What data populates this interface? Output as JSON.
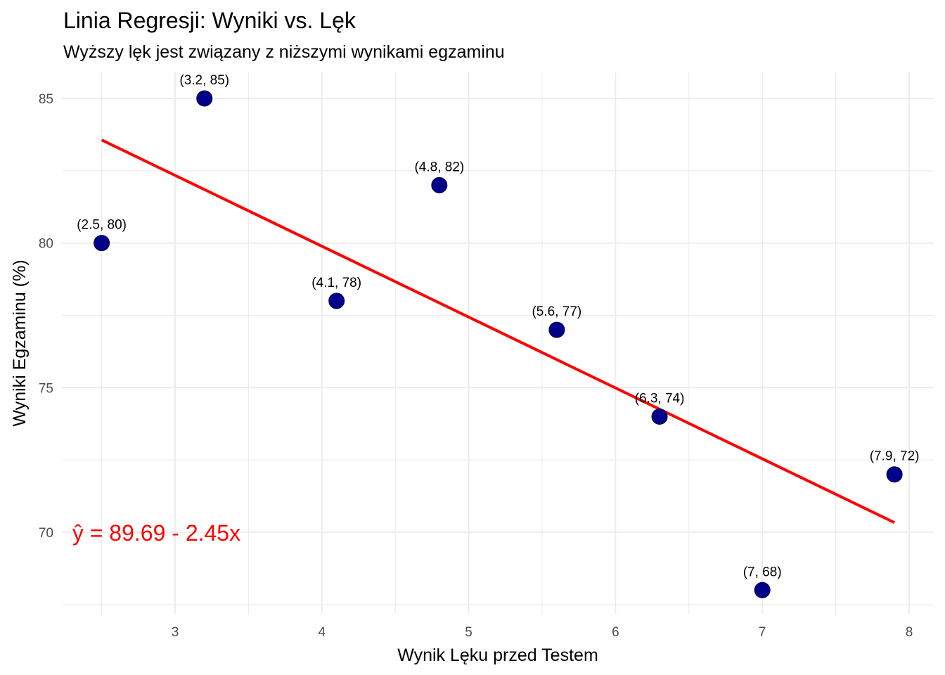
{
  "chart_data": {
    "type": "scatter",
    "title": "Linia Regresji: Wyniki vs. Lęk",
    "subtitle": "Wyższy lęk jest związany z niższymi wynikami egzaminu",
    "xlabel": "Wynik Lęku przed Testem",
    "ylabel": "Wyniki Egzaminu (%)",
    "xlim": [
      2.24,
      8.1
    ],
    "ylim": [
      67.5,
      86
    ],
    "x_ticks": [
      3,
      4,
      5,
      6,
      7,
      8
    ],
    "y_ticks": [
      70,
      75,
      80,
      85
    ],
    "grid": true,
    "points": [
      {
        "x": 2.5,
        "y": 80,
        "label": "(2.5, 80)"
      },
      {
        "x": 3.2,
        "y": 85,
        "label": "(3.2, 85)"
      },
      {
        "x": 4.1,
        "y": 78,
        "label": "(4.1, 78)"
      },
      {
        "x": 4.8,
        "y": 82,
        "label": "(4.8, 82)"
      },
      {
        "x": 5.6,
        "y": 77,
        "label": "(5.6, 77)"
      },
      {
        "x": 6.3,
        "y": 74,
        "label": "(6.3, 74)"
      },
      {
        "x": 7.0,
        "y": 68,
        "label": "(7, 68)"
      },
      {
        "x": 7.9,
        "y": 72,
        "label": "(7.9, 72)"
      }
    ],
    "regression": {
      "intercept": 89.69,
      "slope": -2.45,
      "x_range": [
        2.5,
        7.9
      ],
      "equation": "ŷ = 89.69 - 2.45x",
      "equation_position": {
        "x": 2.3,
        "y": 70
      }
    },
    "colors": {
      "points": "#00008B",
      "regression": "#FF0000",
      "equation": "#FF0000",
      "grid": "#EBEBEB"
    }
  }
}
